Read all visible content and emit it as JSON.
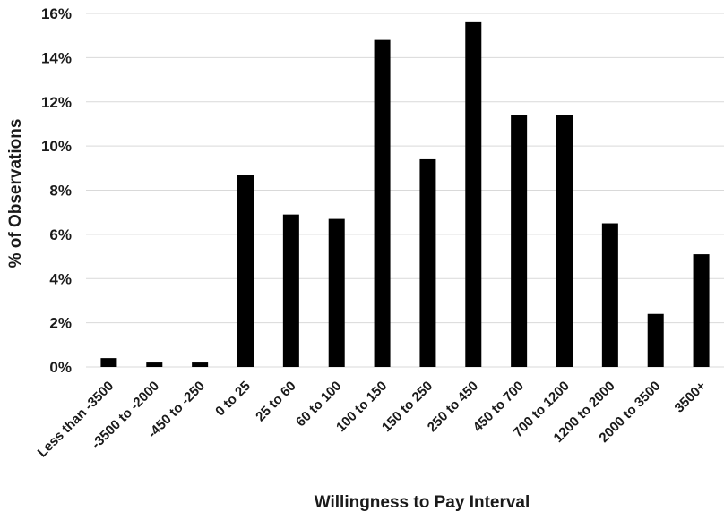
{
  "chart_data": {
    "type": "bar",
    "title": "",
    "xlabel": "Willingness to Pay Interval",
    "ylabel": "% of Observations",
    "categories": [
      "Less than -3500",
      "-3500 to -2000",
      "-450 to -250",
      "0 to 25",
      "25 to 60",
      "60 to 100",
      "100 to 150",
      "150 to 250",
      "250 to 450",
      "450 to 700",
      "700 to 1200",
      "1200 to 2000",
      "2000 to 3500",
      "3500+"
    ],
    "values": [
      0.4,
      0.2,
      0.2,
      8.7,
      6.9,
      6.7,
      14.8,
      9.4,
      15.6,
      11.4,
      11.4,
      6.5,
      2.4,
      5.1
    ],
    "yticks": [
      "0%",
      "2%",
      "4%",
      "6%",
      "8%",
      "10%",
      "12%",
      "14%",
      "16%"
    ],
    "ylim": [
      0,
      16
    ],
    "grid": true,
    "legend": "none",
    "colors": {
      "bar": "#000000",
      "grid": "#d9d9d9",
      "text": "#1a1a1a"
    }
  }
}
